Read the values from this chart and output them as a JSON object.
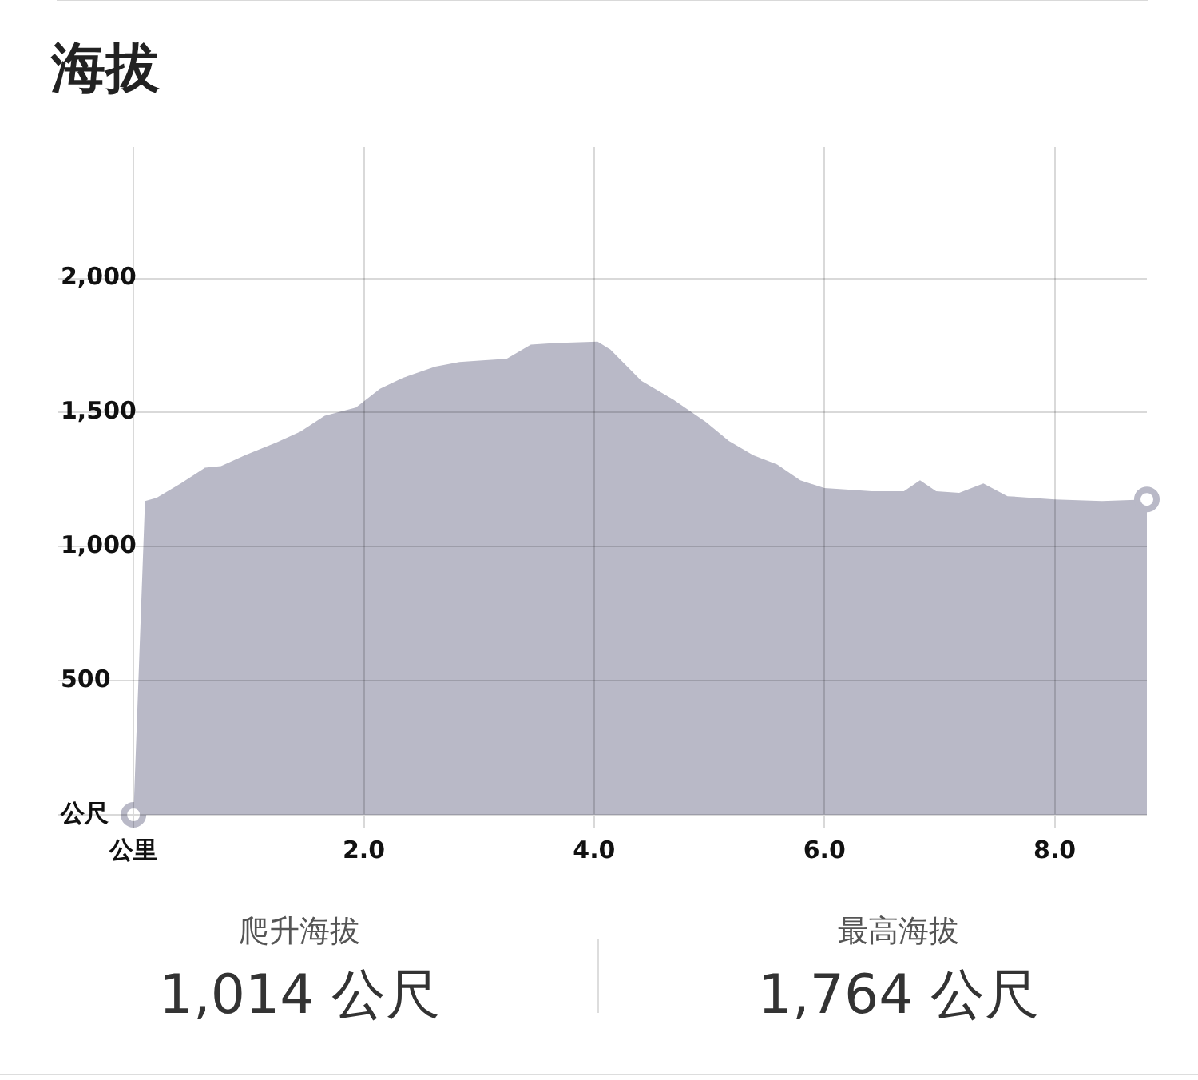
{
  "chart_data": {
    "type": "area",
    "title": "海拔",
    "x": [
      0,
      0.1,
      0.2,
      0.41,
      0.62,
      0.76,
      0.97,
      1.24,
      1.45,
      1.66,
      1.93,
      2.14,
      2.34,
      2.62,
      2.83,
      3.03,
      3.24,
      3.45,
      3.66,
      4.03,
      4.14,
      4.41,
      4.69,
      4.97,
      5.17,
      5.38,
      5.59,
      5.79,
      6.0,
      6.21,
      6.41,
      6.69,
      6.83,
      6.97,
      7.17,
      7.38,
      7.59,
      8.0,
      8.41,
      8.8
    ],
    "series": [
      {
        "color": "#b9b9c7",
        "values": [
          0,
          1170,
          1182,
          1235,
          1294,
          1300,
          1341,
          1388,
          1429,
          1488,
          1518,
          1588,
          1629,
          1671,
          1688,
          1694,
          1700,
          1753,
          1759,
          1764,
          1735,
          1618,
          1547,
          1465,
          1394,
          1341,
          1306,
          1247,
          1218,
          1212,
          1206,
          1206,
          1247,
          1206,
          1200,
          1235,
          1188,
          1176,
          1170,
          1176
        ]
      }
    ],
    "xlim": [
      -0.66,
      8.8
    ],
    "xticks": [
      {
        "value": 0,
        "label": "公里"
      },
      {
        "value": 2,
        "label": "2.0"
      },
      {
        "value": 4,
        "label": "4.0"
      },
      {
        "value": 6,
        "label": "6.0"
      },
      {
        "value": 8,
        "label": "8.0"
      }
    ],
    "ylim": [
      0,
      2490
    ],
    "yticks": [
      {
        "value": 0,
        "label": "公尺"
      },
      500,
      {
        "value": 1000,
        "label": "1,000"
      },
      {
        "value": 1500,
        "label": "1,500"
      },
      {
        "value": 2000,
        "label": "2,000"
      }
    ],
    "grid": true,
    "legend": false,
    "annotations": [
      "爬升海拔",
      "1,014 公尺",
      "最高海拔",
      "1,764 公尺"
    ]
  }
}
